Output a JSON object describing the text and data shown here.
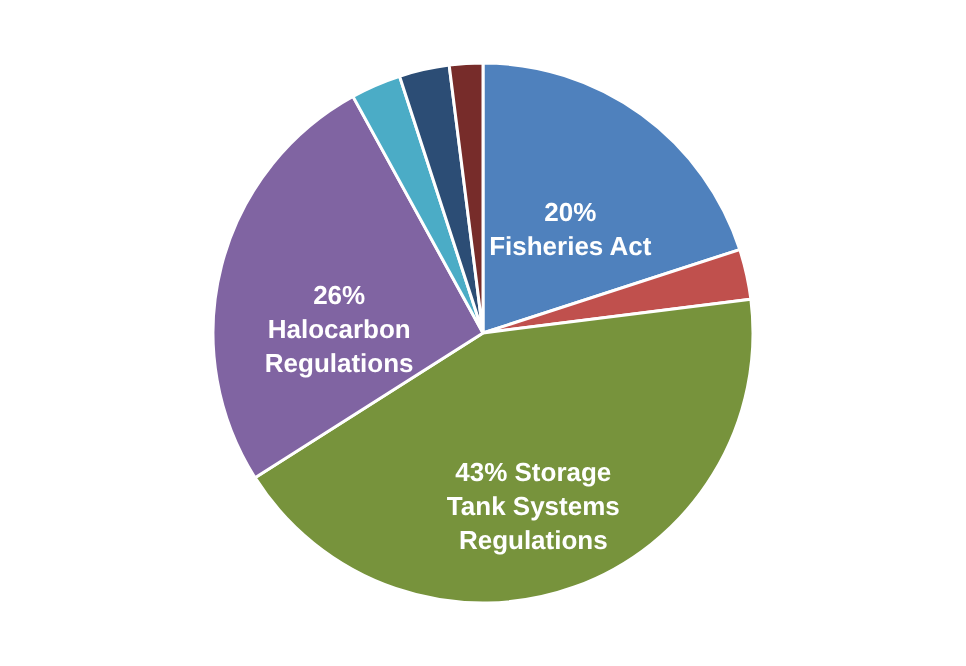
{
  "chart_data": {
    "type": "pie",
    "categories": [
      "Fisheries Act",
      null,
      "Storage Tank Systems Regulations",
      "Halocarbon Regulations",
      null,
      null,
      null
    ],
    "values": [
      20,
      3,
      43,
      26,
      3,
      3,
      2
    ],
    "value_labels": [
      "20%",
      null,
      "43%",
      "26%",
      null,
      null,
      null
    ],
    "colors": [
      "#4f81bd",
      "#c0504d",
      "#77933c",
      "#8064a2",
      "#4bacc6",
      "#2c4d75",
      "#772c2a"
    ]
  }
}
